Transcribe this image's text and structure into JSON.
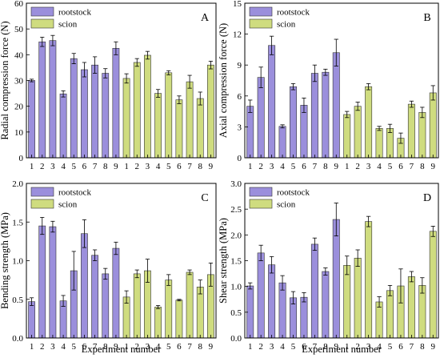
{
  "colors": {
    "rootstock": "#9b8fdc",
    "scion": "#cfdc7f",
    "bar_stroke": "#333333",
    "axis": "#000000"
  },
  "shared": {
    "legend": [
      "rootstock",
      "scion"
    ],
    "x_tick_labels": [
      "1",
      "2",
      "3",
      "4",
      "5",
      "6",
      "7",
      "8",
      "9",
      "1",
      "2",
      "3",
      "4",
      "5",
      "6",
      "7",
      "8",
      "9"
    ],
    "xlabel": "Experiment number"
  },
  "chart_data": [
    {
      "panel": "A",
      "type": "bar",
      "ylabel": "Radial compression force (N)",
      "ylim": [
        0,
        60
      ],
      "yticks": [
        0,
        10,
        20,
        30,
        40,
        50,
        60
      ],
      "ytick_labels": [
        "0",
        "10",
        "20",
        "30",
        "40",
        "50",
        "60"
      ],
      "legend_position": "top-left",
      "xlabel": "",
      "series": [
        {
          "name": "rootstock",
          "values": [
            30,
            45,
            45.5,
            24.8,
            38.5,
            34.2,
            36,
            32.8,
            42.5
          ],
          "errors": [
            0.5,
            1.8,
            2,
            1.2,
            2,
            2.8,
            3.2,
            1.8,
            2.5
          ]
        },
        {
          "name": "scion",
          "values": [
            30.8,
            37,
            39.8,
            25,
            33,
            22.5,
            29.5,
            23,
            36
          ],
          "errors": [
            1.8,
            1.5,
            1.5,
            1.5,
            0.8,
            1.5,
            2.5,
            2.5,
            1.5
          ]
        }
      ]
    },
    {
      "panel": "B",
      "type": "bar",
      "ylabel": "Axial compression force (N)",
      "ylim": [
        0,
        15
      ],
      "yticks": [
        0,
        3,
        6,
        9,
        12,
        15
      ],
      "ytick_labels": [
        "0",
        "3",
        "6",
        "9",
        "12",
        "15"
      ],
      "legend_position": "top-left",
      "xlabel": "",
      "series": [
        {
          "name": "rootstock",
          "values": [
            5,
            7.8,
            10.9,
            3.05,
            6.9,
            5.1,
            8.2,
            8.3,
            10.2
          ],
          "errors": [
            0.6,
            1,
            0.9,
            0.15,
            0.3,
            0.7,
            0.8,
            0.3,
            1.3
          ]
        },
        {
          "name": "scion",
          "values": [
            4.2,
            5,
            6.9,
            2.85,
            2.85,
            1.9,
            5.2,
            4.4,
            6.3
          ],
          "errors": [
            0.3,
            0.4,
            0.3,
            0.2,
            0.4,
            0.5,
            0.3,
            0.5,
            0.7
          ]
        }
      ]
    },
    {
      "panel": "C",
      "type": "bar",
      "ylabel": "Bending strength (MPa)",
      "ylim": [
        0,
        2.0
      ],
      "yticks": [
        0,
        0.5,
        1.0,
        1.5,
        2.0
      ],
      "ytick_labels": [
        "0.0",
        "0.5",
        "1.0",
        "1.5",
        "2.0"
      ],
      "legend_position": "top-left",
      "xlabel": "Experiment number",
      "series": [
        {
          "name": "rootstock",
          "values": [
            0.47,
            1.45,
            1.44,
            0.48,
            0.87,
            1.35,
            1.07,
            0.83,
            1.16
          ],
          "errors": [
            0.05,
            0.11,
            0.07,
            0.07,
            0.25,
            0.18,
            0.07,
            0.07,
            0.08
          ]
        },
        {
          "name": "scion",
          "values": [
            0.53,
            0.83,
            0.87,
            0.4,
            0.75,
            0.49,
            0.85,
            0.66,
            0.82
          ],
          "errors": [
            0.08,
            0.05,
            0.15,
            0.02,
            0.07,
            0.01,
            0.03,
            0.09,
            0.15
          ]
        }
      ]
    },
    {
      "panel": "D",
      "type": "bar",
      "ylabel": "Shear strength (MPa)",
      "ylim": [
        0,
        3.0
      ],
      "yticks": [
        0,
        0.5,
        1.0,
        1.5,
        2.0,
        2.5,
        3.0
      ],
      "ytick_labels": [
        "0.0",
        "0.5",
        "1.0",
        "1.5",
        "2.0",
        "2.5",
        "3.0"
      ],
      "legend_position": "top-left",
      "xlabel": "Experiment number",
      "series": [
        {
          "name": "rootstock",
          "values": [
            1.01,
            1.65,
            1.42,
            1.07,
            0.78,
            0.79,
            1.82,
            1.29,
            2.3
          ],
          "errors": [
            0.06,
            0.15,
            0.16,
            0.14,
            0.12,
            0.09,
            0.12,
            0.07,
            0.32
          ]
        },
        {
          "name": "scion",
          "values": [
            1.41,
            1.55,
            2.26,
            0.7,
            0.92,
            1.01,
            1.19,
            1.02,
            2.07
          ],
          "errors": [
            0.18,
            0.16,
            0.1,
            0.1,
            0.1,
            0.33,
            0.1,
            0.15,
            0.1
          ]
        }
      ]
    }
  ]
}
